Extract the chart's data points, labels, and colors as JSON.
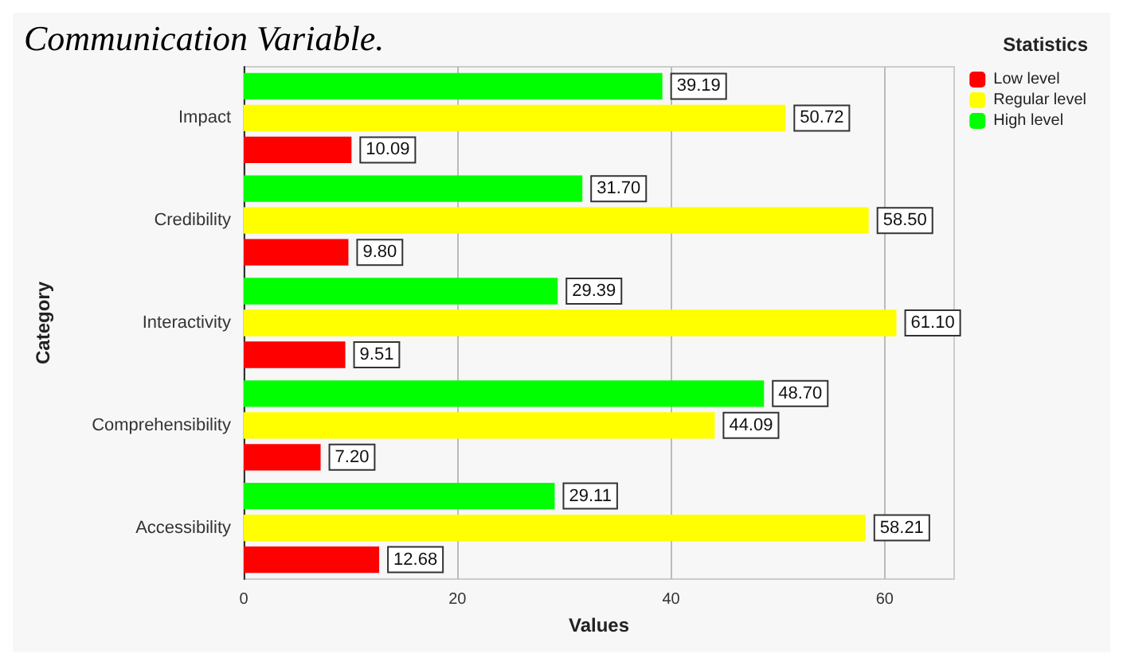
{
  "chart_data": {
    "type": "bar",
    "orientation": "horizontal",
    "title": "Communication Variable.",
    "xlabel": "Values",
    "ylabel": "Category",
    "legend_title": "Statistics",
    "categories": [
      "Impact",
      "Credibility",
      "Interactivity",
      "Comprehensibility",
      "Accessibility"
    ],
    "series": [
      {
        "name": "Low level",
        "color": "#ff0000",
        "values": [
          10.09,
          9.8,
          9.51,
          7.2,
          12.68
        ],
        "value_labels": [
          "10.09",
          "9.80",
          "9.51",
          "7.20",
          "12.68"
        ]
      },
      {
        "name": "Regular level",
        "color": "#ffff00",
        "values": [
          50.72,
          58.5,
          61.1,
          44.09,
          58.21
        ],
        "value_labels": [
          "50.72",
          "58.50",
          "61.10",
          "44.09",
          "58.21"
        ]
      },
      {
        "name": "High level",
        "color": "#00ff00",
        "values": [
          39.19,
          31.7,
          29.39,
          48.7,
          29.11
        ],
        "value_labels": [
          "39.19",
          "31.70",
          "29.39",
          "48.70",
          "29.11"
        ]
      }
    ],
    "xlim": [
      0,
      66.5
    ],
    "xticks": [
      0,
      20,
      40,
      60
    ],
    "grid": "x",
    "legend": "top right"
  }
}
